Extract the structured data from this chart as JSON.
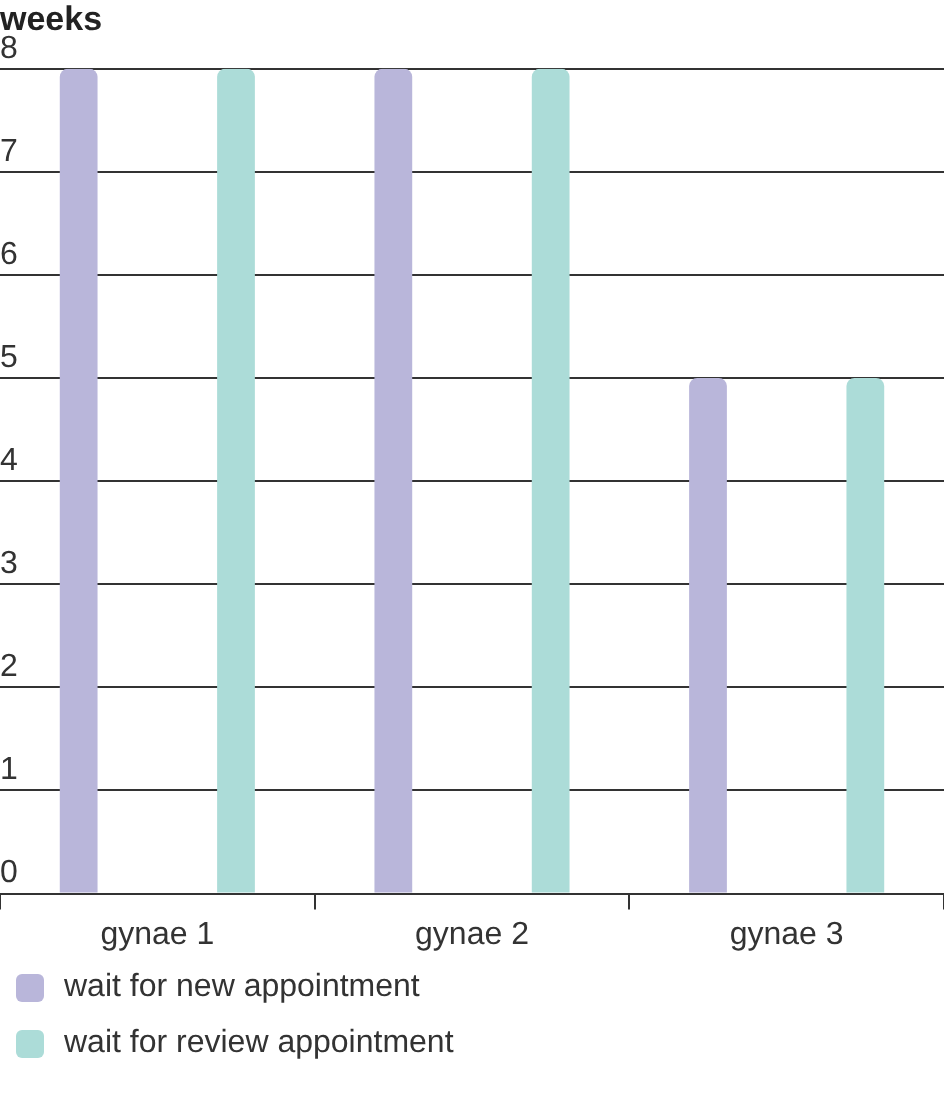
{
  "chart_data": {
    "type": "bar",
    "ylabel": "weeks",
    "categories": [
      "gynae 1",
      "gynae 2",
      "gynae 3"
    ],
    "series": [
      {
        "name": "wait for new appointment",
        "color": "#b9b6da",
        "values": [
          8,
          8,
          5
        ]
      },
      {
        "name": "wait for review appointment",
        "color": "#acdcd8",
        "values": [
          8,
          8,
          5
        ]
      }
    ],
    "ylim": [
      0,
      8
    ],
    "yticks": [
      0,
      1,
      2,
      3,
      4,
      5,
      6,
      7,
      8
    ],
    "grid": "y",
    "legend": "bottom left"
  }
}
